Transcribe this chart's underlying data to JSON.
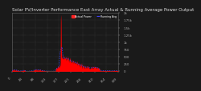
{
  "title": "Solar PV/Inverter Performance East Array Actual & Running Average Power Output",
  "bg_color": "#1a1a1a",
  "plot_bg": "#1a1a1a",
  "grid_color": "#555555",
  "area_color": "#ff0000",
  "avg_color": "#4444ff",
  "ylim": [
    0,
    2000
  ],
  "yticks": [
    0,
    250,
    500,
    750,
    1000,
    1250,
    1500,
    1750,
    2000
  ],
  "ytick_labels": [
    "0",
    "250",
    "500",
    "750",
    "1k",
    "1.25k",
    "1.5k",
    "1.75k",
    "2k"
  ],
  "num_points": 400,
  "title_fontsize": 4.0,
  "tick_fontsize": 2.8,
  "legend_entries": [
    "Actual Power",
    "Running Avg"
  ],
  "legend_colors": [
    "#ff2222",
    "#4444ff"
  ],
  "title_color": "#dddddd",
  "tick_color": "#aaaaaa",
  "spine_color": "#666666"
}
